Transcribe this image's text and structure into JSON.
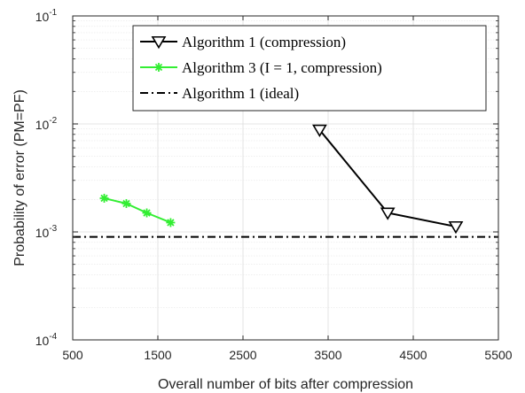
{
  "chart_data": {
    "type": "line",
    "xlabel": "Overall number of bits after compression",
    "ylabel": "Probability of error (PM=PF)",
    "xlim": [
      500,
      5500
    ],
    "ylim": [
      0.0001,
      0.1
    ],
    "yscale": "log",
    "xticks": [
      500,
      1500,
      2500,
      3500,
      4500,
      5500
    ],
    "xtick_labels": [
      "500",
      "1500",
      "2500",
      "3500",
      "4500",
      "5500"
    ],
    "yticks": [
      {
        "value": 0.0001,
        "base": "10",
        "exp": "-4"
      },
      {
        "value": 0.001,
        "base": "10",
        "exp": "-3"
      },
      {
        "value": 0.01,
        "base": "10",
        "exp": "-2"
      },
      {
        "value": 0.1,
        "base": "10",
        "exp": "-1"
      }
    ],
    "grid": true,
    "legend_position": "top-right",
    "series": [
      {
        "name": "Algorithm 1 (compression)",
        "color": "#000000",
        "marker": "triangle-down",
        "line": "solid",
        "x": [
          3400,
          4200,
          5000
        ],
        "y": [
          0.0088,
          0.0015,
          0.00112
        ]
      },
      {
        "name": "Algorithm 3 (I = 1, compression)",
        "color": "#33ee33",
        "marker": "asterisk",
        "line": "solid",
        "x": [
          870,
          1130,
          1370,
          1650
        ],
        "y": [
          0.00205,
          0.00183,
          0.0015,
          0.00122
        ]
      },
      {
        "name": "Algorithm 1 (ideal)",
        "color": "#000000",
        "marker": "none",
        "line": "dashdot",
        "x": [
          500,
          5500
        ],
        "y": [
          0.0009,
          0.0009
        ]
      }
    ]
  }
}
